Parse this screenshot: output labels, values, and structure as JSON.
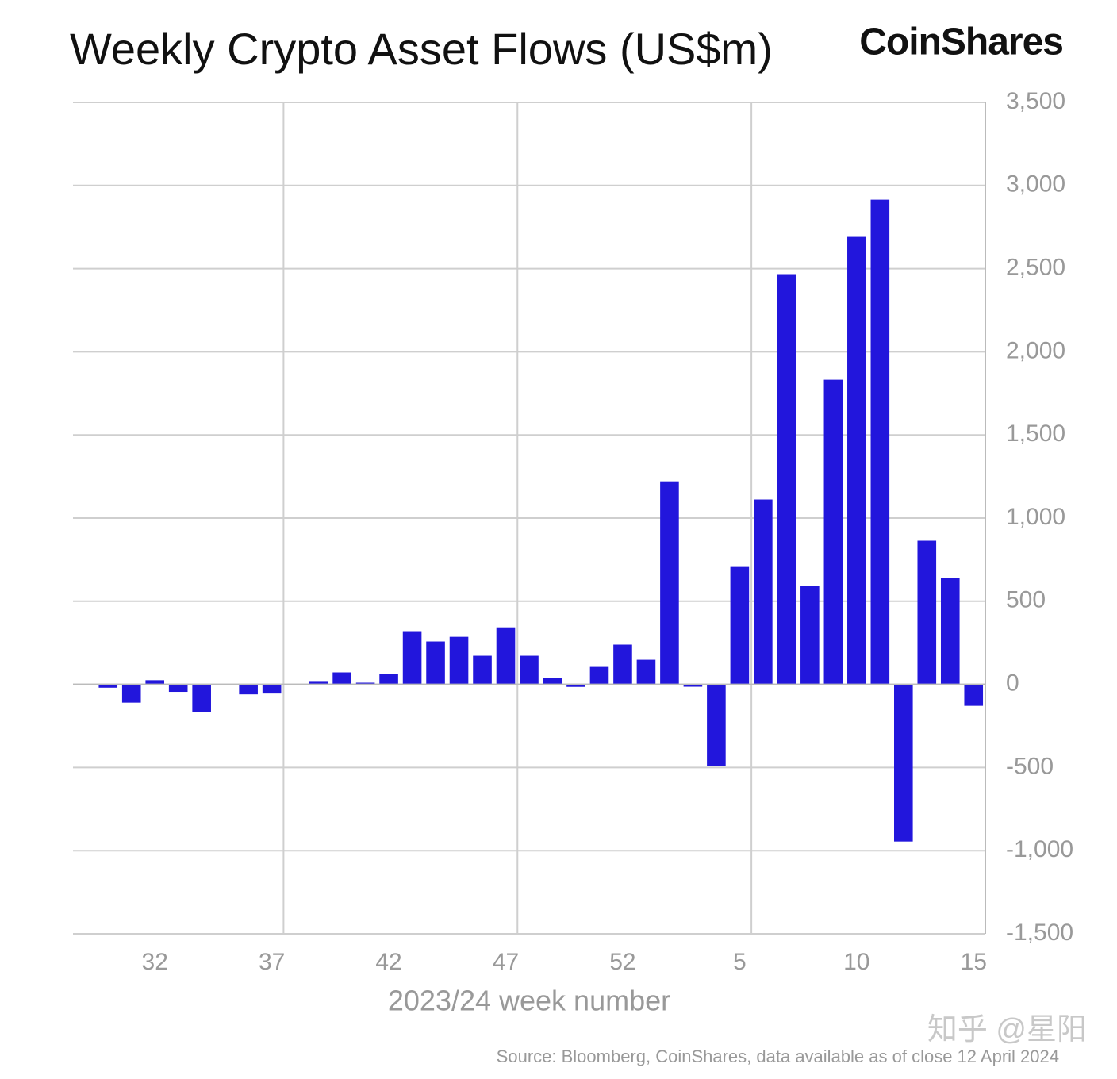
{
  "chart_data": {
    "type": "bar",
    "title": "Weekly Crypto Asset Flows (US$m)",
    "brand": "CoinShares",
    "x_label": "2023/24 week number",
    "source": "Source: Bloomberg, CoinShares, data available as of close 12 April 2024",
    "watermark": "知乎 @星阳",
    "color": "#2216dc",
    "grid": true,
    "categories": [
      null,
      null,
      null,
      "32",
      null,
      null,
      null,
      null,
      "37",
      null,
      null,
      null,
      null,
      "42",
      null,
      null,
      null,
      null,
      "47",
      null,
      null,
      null,
      null,
      "52",
      null,
      null,
      null,
      null,
      "5",
      null,
      null,
      null,
      null,
      "10",
      null,
      null,
      null,
      null,
      "15"
    ],
    "values": [
      0,
      -20,
      -110,
      25,
      -45,
      -165,
      0,
      -60,
      -55,
      -5,
      20,
      72,
      10,
      62,
      320,
      258,
      286,
      172,
      343,
      172,
      38,
      -15,
      105,
      239,
      148,
      1221,
      -14,
      -491,
      706,
      1112,
      2467,
      592,
      1832,
      2691,
      2915,
      -945,
      864,
      639,
      -129
    ],
    "ylim": [
      -1500,
      3500
    ],
    "yticks": [
      {
        "value": -1500,
        "label": "-1,500"
      },
      {
        "value": -1000,
        "label": "-1,000"
      },
      -500,
      0,
      500,
      {
        "value": 1000,
        "label": "1,000"
      },
      {
        "value": 1500,
        "label": "1,500"
      },
      {
        "value": 2000,
        "label": "2,000"
      },
      {
        "value": 2500,
        "label": "2,500"
      },
      {
        "value": 3000,
        "label": "3,000"
      },
      {
        "value": 3500,
        "label": "3,500"
      }
    ]
  }
}
